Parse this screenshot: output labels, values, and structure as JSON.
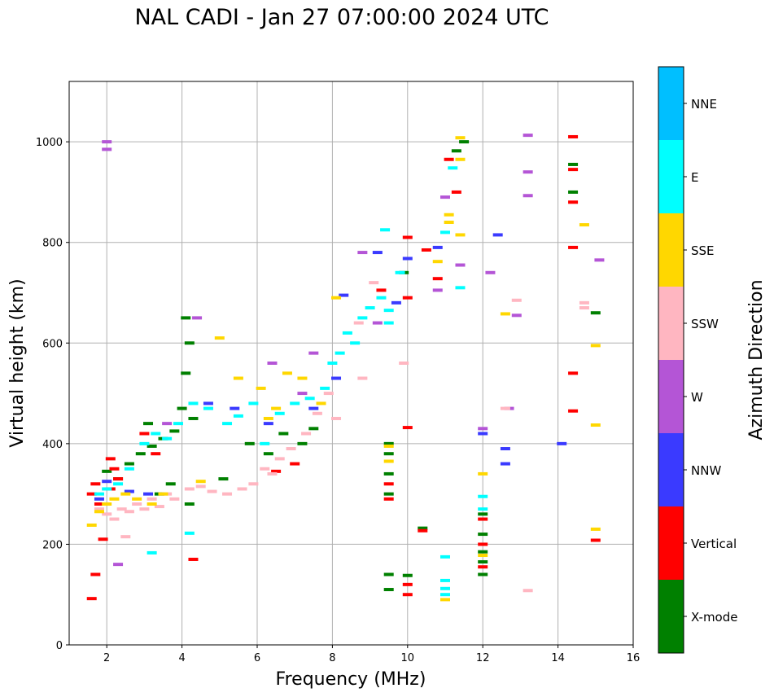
{
  "chart_data": {
    "type": "scatter",
    "title": "NAL CADI - Jan 27 07:00:00 2024 UTC",
    "xlabel": "Frequency (MHz)",
    "ylabel": "Virtual height (km)",
    "xlim": [
      1,
      16
    ],
    "ylim": [
      0,
      1120
    ],
    "xticks": [
      2,
      4,
      6,
      8,
      10,
      12,
      14,
      16
    ],
    "yticks": [
      0,
      200,
      400,
      600,
      800,
      1000
    ],
    "grid": true,
    "colorbar": {
      "label": "Azimuth Direction",
      "categories": [
        "X-mode",
        "Vertical",
        "NNW",
        "W",
        "SSW",
        "SSE",
        "E",
        "NNE"
      ],
      "colors": [
        "#008000",
        "#ff0000",
        "#3a3aff",
        "#b455d6",
        "#ffb6c1",
        "#ffd700",
        "#00ffff",
        "#00bfff"
      ]
    },
    "series": [
      {
        "name": "X-mode",
        "points": [
          [
            2.9,
            380
          ],
          [
            3.2,
            395
          ],
          [
            3.5,
            410
          ],
          [
            3.8,
            425
          ],
          [
            4.0,
            470
          ],
          [
            4.1,
            540
          ],
          [
            4.2,
            600
          ],
          [
            4.1,
            650
          ],
          [
            4.3,
            450
          ],
          [
            3.4,
            300
          ],
          [
            3.7,
            320
          ],
          [
            4.2,
            280
          ],
          [
            5.1,
            330
          ],
          [
            5.8,
            400
          ],
          [
            6.3,
            380
          ],
          [
            6.7,
            420
          ],
          [
            7.2,
            400
          ],
          [
            7.5,
            430
          ],
          [
            9.5,
            300
          ],
          [
            9.5,
            340
          ],
          [
            9.5,
            380
          ],
          [
            9.5,
            400
          ],
          [
            9.5,
            140
          ],
          [
            9.5,
            110
          ],
          [
            9.9,
            740
          ],
          [
            10.0,
            138
          ],
          [
            10.4,
            232
          ],
          [
            11.3,
            982
          ],
          [
            11.5,
            1000
          ],
          [
            12.0,
            260
          ],
          [
            12.0,
            220
          ],
          [
            12.0,
            185
          ],
          [
            12.0,
            165
          ],
          [
            12.0,
            140
          ],
          [
            14.4,
            900
          ],
          [
            14.4,
            955
          ],
          [
            15.0,
            660
          ],
          [
            2.0,
            345
          ],
          [
            2.3,
            330
          ],
          [
            3.1,
            440
          ],
          [
            2.6,
            360
          ]
        ]
      },
      {
        "name": "Vertical",
        "points": [
          [
            1.6,
            300
          ],
          [
            1.7,
            320
          ],
          [
            1.8,
            280
          ],
          [
            2.1,
            310
          ],
          [
            2.2,
            350
          ],
          [
            2.3,
            330
          ],
          [
            1.6,
            92
          ],
          [
            1.7,
            140
          ],
          [
            1.9,
            210
          ],
          [
            2.1,
            370
          ],
          [
            3.0,
            420
          ],
          [
            3.3,
            380
          ],
          [
            4.3,
            170
          ],
          [
            6.5,
            345
          ],
          [
            7.0,
            360
          ],
          [
            9.3,
            705
          ],
          [
            9.5,
            290
          ],
          [
            9.5,
            320
          ],
          [
            10.0,
            120
          ],
          [
            10.0,
            100
          ],
          [
            10.0,
            432
          ],
          [
            10.0,
            690
          ],
          [
            10.0,
            810
          ],
          [
            10.4,
            227
          ],
          [
            10.5,
            785
          ],
          [
            10.8,
            728
          ],
          [
            11.1,
            965
          ],
          [
            11.3,
            900
          ],
          [
            12.0,
            250
          ],
          [
            12.0,
            200
          ],
          [
            12.0,
            155
          ],
          [
            14.4,
            1010
          ],
          [
            14.4,
            945
          ],
          [
            14.4,
            880
          ],
          [
            14.4,
            790
          ],
          [
            14.4,
            540
          ],
          [
            14.4,
            465
          ],
          [
            15.0,
            208
          ]
        ]
      },
      {
        "name": "NNW",
        "points": [
          [
            1.8,
            290
          ],
          [
            2.0,
            325
          ],
          [
            2.6,
            305
          ],
          [
            3.1,
            300
          ],
          [
            4.7,
            480
          ],
          [
            5.4,
            470
          ],
          [
            6.3,
            440
          ],
          [
            7.5,
            470
          ],
          [
            8.1,
            530
          ],
          [
            8.3,
            695
          ],
          [
            9.2,
            780
          ],
          [
            10.0,
            768
          ],
          [
            10.8,
            790
          ],
          [
            12.0,
            420
          ],
          [
            12.4,
            815
          ],
          [
            12.6,
            390
          ],
          [
            12.6,
            360
          ],
          [
            14.1,
            400
          ],
          [
            9.7,
            680
          ]
        ]
      },
      {
        "name": "W",
        "points": [
          [
            2.0,
            1000
          ],
          [
            2.0,
            985
          ],
          [
            2.3,
            160
          ],
          [
            3.6,
            440
          ],
          [
            4.4,
            650
          ],
          [
            6.4,
            560
          ],
          [
            7.2,
            500
          ],
          [
            7.5,
            580
          ],
          [
            8.8,
            780
          ],
          [
            9.2,
            640
          ],
          [
            10.8,
            705
          ],
          [
            11.0,
            890
          ],
          [
            11.4,
            755
          ],
          [
            12.0,
            430
          ],
          [
            12.2,
            740
          ],
          [
            12.7,
            470
          ],
          [
            12.9,
            655
          ],
          [
            13.2,
            1013
          ],
          [
            13.2,
            940
          ],
          [
            13.2,
            893
          ],
          [
            15.1,
            765
          ]
        ]
      },
      {
        "name": "SSW",
        "points": [
          [
            1.8,
            270
          ],
          [
            2.0,
            260
          ],
          [
            2.2,
            250
          ],
          [
            2.4,
            270
          ],
          [
            2.6,
            265
          ],
          [
            2.8,
            280
          ],
          [
            3.0,
            270
          ],
          [
            3.2,
            290
          ],
          [
            3.4,
            275
          ],
          [
            3.6,
            300
          ],
          [
            3.8,
            290
          ],
          [
            4.2,
            310
          ],
          [
            4.5,
            315
          ],
          [
            4.8,
            305
          ],
          [
            5.2,
            300
          ],
          [
            5.6,
            310
          ],
          [
            5.9,
            320
          ],
          [
            6.2,
            350
          ],
          [
            6.4,
            340
          ],
          [
            6.6,
            370
          ],
          [
            6.9,
            390
          ],
          [
            7.3,
            420
          ],
          [
            7.6,
            460
          ],
          [
            7.9,
            500
          ],
          [
            8.1,
            450
          ],
          [
            8.7,
            640
          ],
          [
            8.8,
            530
          ],
          [
            9.1,
            720
          ],
          [
            9.9,
            560
          ],
          [
            12.6,
            470
          ],
          [
            12.9,
            685
          ],
          [
            13.2,
            108
          ],
          [
            14.7,
            680
          ],
          [
            14.7,
            670
          ],
          [
            2.5,
            215
          ]
        ]
      },
      {
        "name": "SSE",
        "points": [
          [
            1.6,
            238
          ],
          [
            1.8,
            265
          ],
          [
            2.0,
            280
          ],
          [
            2.2,
            290
          ],
          [
            2.5,
            300
          ],
          [
            2.8,
            290
          ],
          [
            3.2,
            280
          ],
          [
            3.5,
            300
          ],
          [
            4.5,
            325
          ],
          [
            5.0,
            610
          ],
          [
            5.5,
            530
          ],
          [
            6.1,
            510
          ],
          [
            6.3,
            450
          ],
          [
            6.5,
            470
          ],
          [
            6.8,
            540
          ],
          [
            7.2,
            530
          ],
          [
            7.7,
            480
          ],
          [
            8.1,
            690
          ],
          [
            9.5,
            365
          ],
          [
            9.5,
            395
          ],
          [
            10.8,
            762
          ],
          [
            11.1,
            855
          ],
          [
            11.1,
            840
          ],
          [
            11.4,
            1008
          ],
          [
            11.4,
            965
          ],
          [
            11.4,
            815
          ],
          [
            12.0,
            178
          ],
          [
            12.0,
            340
          ],
          [
            12.6,
            658
          ],
          [
            14.7,
            835
          ],
          [
            15.0,
            595
          ],
          [
            15.0,
            437
          ],
          [
            15.0,
            230
          ],
          [
            11.0,
            90
          ]
        ]
      },
      {
        "name": "E",
        "points": [
          [
            1.8,
            300
          ],
          [
            2.0,
            310
          ],
          [
            2.3,
            320
          ],
          [
            2.6,
            350
          ],
          [
            3.0,
            400
          ],
          [
            3.3,
            420
          ],
          [
            3.6,
            410
          ],
          [
            3.9,
            440
          ],
          [
            4.3,
            480
          ],
          [
            4.7,
            470
          ],
          [
            5.2,
            440
          ],
          [
            5.5,
            455
          ],
          [
            5.9,
            480
          ],
          [
            6.2,
            400
          ],
          [
            6.6,
            460
          ],
          [
            7.0,
            480
          ],
          [
            7.4,
            490
          ],
          [
            7.8,
            510
          ],
          [
            8.0,
            560
          ],
          [
            8.2,
            580
          ],
          [
            8.4,
            620
          ],
          [
            8.6,
            600
          ],
          [
            8.8,
            650
          ],
          [
            9.0,
            670
          ],
          [
            9.3,
            690
          ],
          [
            9.5,
            665
          ],
          [
            9.5,
            640
          ],
          [
            9.8,
            740
          ],
          [
            9.4,
            825
          ],
          [
            11.0,
            820
          ],
          [
            11.0,
            128
          ],
          [
            11.0,
            112
          ],
          [
            11.0,
            100
          ],
          [
            11.0,
            175
          ],
          [
            11.2,
            948
          ],
          [
            11.4,
            710
          ],
          [
            12.0,
            295
          ],
          [
            12.0,
            270
          ],
          [
            3.2,
            183
          ],
          [
            4.2,
            222
          ]
        ]
      }
    ]
  }
}
